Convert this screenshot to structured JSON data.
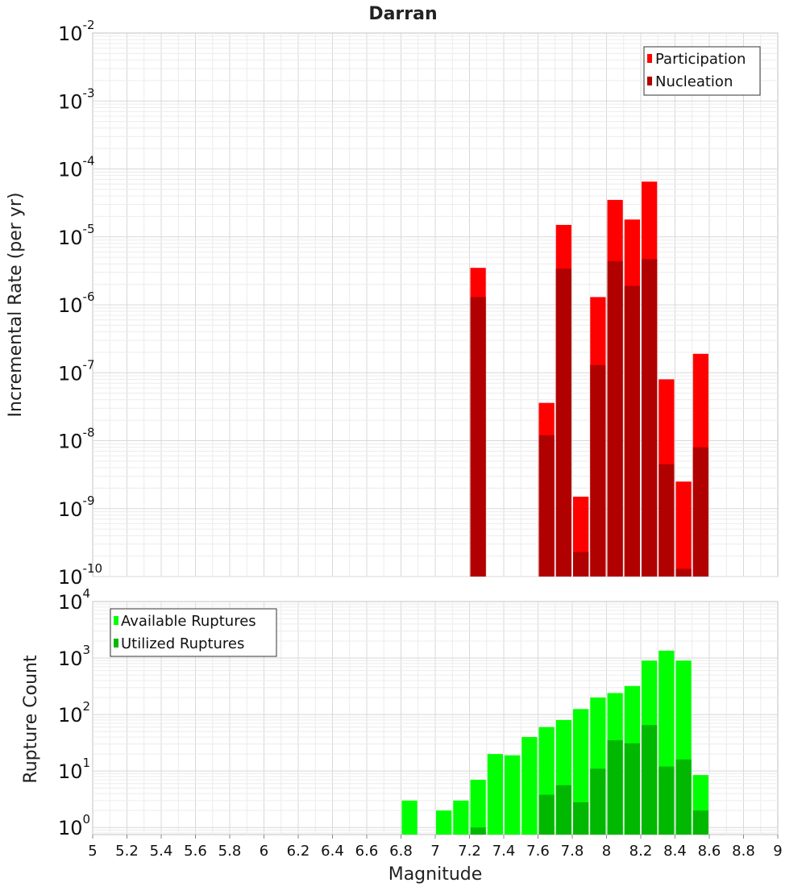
{
  "chart_data": [
    {
      "type": "bar",
      "title": "Darran",
      "xlabel": "",
      "ylabel": "Incremental Rate (per yr)",
      "xlim": [
        5,
        9
      ],
      "ylim": [
        1e-10,
        0.01
      ],
      "yscale": "log",
      "yticks": [
        {
          "base": "10",
          "exp": "-10",
          "value": 1e-10
        },
        {
          "base": "10",
          "exp": "-9",
          "value": 1e-09
        },
        {
          "base": "10",
          "exp": "-8",
          "value": 1e-08
        },
        {
          "base": "10",
          "exp": "-7",
          "value": 1e-07
        },
        {
          "base": "10",
          "exp": "-6",
          "value": 1e-06
        },
        {
          "base": "10",
          "exp": "-5",
          "value": 1e-05
        },
        {
          "base": "10",
          "exp": "-4",
          "value": 0.0001
        },
        {
          "base": "10",
          "exp": "-3",
          "value": 0.001
        },
        {
          "base": "10",
          "exp": "-2",
          "value": 0.01
        }
      ],
      "grid": true,
      "legend_position": "top-right",
      "bin_width": 0.1,
      "series": [
        {
          "name": "Participation",
          "color": "#ff0000",
          "points": [
            [
              7.25,
              3.5e-06
            ],
            [
              7.65,
              3.6e-08
            ],
            [
              7.75,
              1.5e-05
            ],
            [
              7.85,
              1.5e-09
            ],
            [
              7.95,
              1.3e-06
            ],
            [
              8.05,
              3.5e-05
            ],
            [
              8.15,
              1.8e-05
            ],
            [
              8.25,
              6.5e-05
            ],
            [
              8.35,
              8e-08
            ],
            [
              8.45,
              2.5e-09
            ],
            [
              8.55,
              1.9e-07
            ]
          ]
        },
        {
          "name": "Nucleation",
          "color": "#b00000",
          "points": [
            [
              7.25,
              1.3e-06
            ],
            [
              7.65,
              1.2e-08
            ],
            [
              7.75,
              3.4e-06
            ],
            [
              7.85,
              2.3e-10
            ],
            [
              7.95,
              1.3e-07
            ],
            [
              8.05,
              4.4e-06
            ],
            [
              8.15,
              1.9e-06
            ],
            [
              8.25,
              4.7e-06
            ],
            [
              8.35,
              4.5e-09
            ],
            [
              8.45,
              1.3e-10
            ],
            [
              8.55,
              8e-09
            ]
          ]
        }
      ]
    },
    {
      "type": "bar",
      "title": "",
      "xlabel": "Magnitude",
      "ylabel": "Rupture Count",
      "xlim": [
        5,
        9
      ],
      "ylim": [
        0.75,
        10000
      ],
      "yscale": "log",
      "yticks": [
        {
          "base": "10",
          "exp": "0",
          "value": 1
        },
        {
          "base": "10",
          "exp": "1",
          "value": 10
        },
        {
          "base": "10",
          "exp": "2",
          "value": 100
        },
        {
          "base": "10",
          "exp": "3",
          "value": 1000
        },
        {
          "base": "10",
          "exp": "4",
          "value": 10000
        }
      ],
      "xticks": [
        "5",
        "5.2",
        "5.4",
        "5.6",
        "5.8",
        "6",
        "6.2",
        "6.4",
        "6.6",
        "6.8",
        "7",
        "7.2",
        "7.4",
        "7.6",
        "7.8",
        "8",
        "8.2",
        "8.4",
        "8.6",
        "8.8",
        "9"
      ],
      "grid": true,
      "legend_position": "top-left",
      "bin_width": 0.1,
      "series": [
        {
          "name": "Available Ruptures",
          "color": "#00ff00",
          "points": [
            [
              6.85,
              3
            ],
            [
              7.05,
              2
            ],
            [
              7.15,
              3
            ],
            [
              7.25,
              7
            ],
            [
              7.35,
              20
            ],
            [
              7.45,
              19
            ],
            [
              7.55,
              40
            ],
            [
              7.65,
              60
            ],
            [
              7.75,
              80
            ],
            [
              7.85,
              125
            ],
            [
              7.95,
              200
            ],
            [
              8.05,
              240
            ],
            [
              8.15,
              320
            ],
            [
              8.25,
              900
            ],
            [
              8.35,
              1350
            ],
            [
              8.45,
              900
            ],
            [
              8.55,
              8.5
            ]
          ]
        },
        {
          "name": "Utilized Ruptures",
          "color": "#00b800",
          "points": [
            [
              7.25,
              1
            ],
            [
              7.65,
              3.8
            ],
            [
              7.75,
              5.6
            ],
            [
              7.85,
              2.8
            ],
            [
              7.95,
              11
            ],
            [
              8.05,
              35
            ],
            [
              8.15,
              31
            ],
            [
              8.25,
              65
            ],
            [
              8.35,
              12
            ],
            [
              8.45,
              16
            ],
            [
              8.55,
              2
            ]
          ]
        }
      ]
    }
  ]
}
